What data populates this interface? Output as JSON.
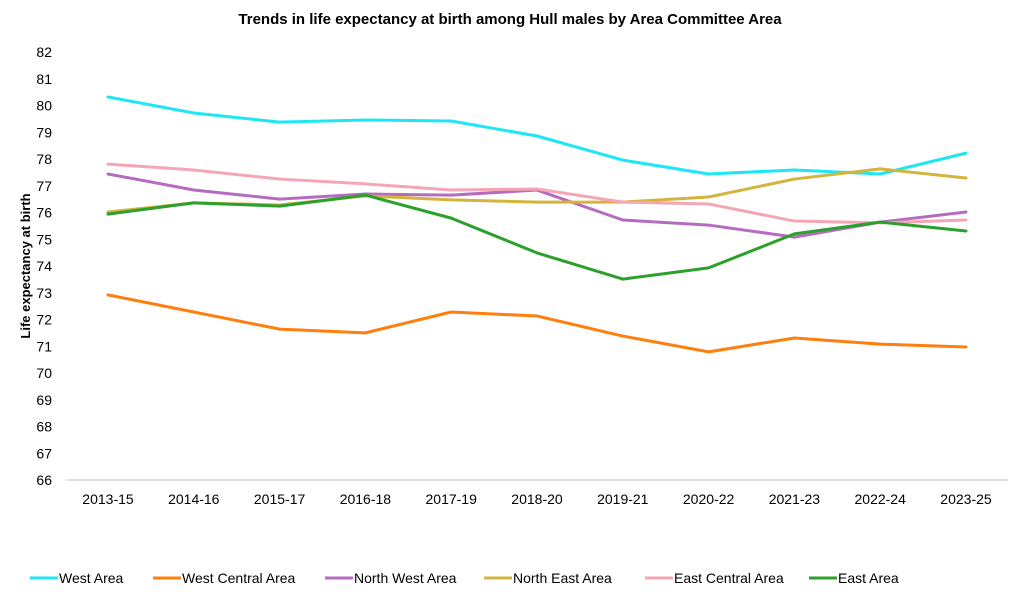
{
  "chart_data": {
    "type": "line",
    "title": "Trends in life expectancy at birth among Hull males by Area Committee Area",
    "xlabel": "",
    "ylabel": "Life expectancy at birth",
    "ylim": [
      66,
      82
    ],
    "yticks": [
      "66",
      "67",
      "68",
      "69",
      "70",
      "71",
      "72",
      "73",
      "74",
      "75",
      "76",
      "77",
      "78",
      "79",
      "80",
      "81",
      "82"
    ],
    "grid": false,
    "legend_position": "bottom",
    "categories": [
      "2013-15",
      "2014-16",
      "2015-17",
      "2016-18",
      "2017-19",
      "2018-20",
      "2019-21",
      "2020-22",
      "2021-23",
      "2022-24",
      "2023-25"
    ],
    "series": [
      {
        "name": "West Area",
        "color": "#1ee6f5",
        "values": [
          80.32,
          79.72,
          79.38,
          79.46,
          79.42,
          78.86,
          77.96,
          77.44,
          77.59,
          77.44,
          78.22
        ]
      },
      {
        "name": "West Central Area",
        "color": "#ff7f0e",
        "values": [
          72.92,
          72.28,
          71.64,
          71.5,
          72.28,
          72.13,
          71.38,
          70.79,
          71.31,
          71.08,
          70.97
        ]
      },
      {
        "name": "North West Area",
        "color": "#b56cc0",
        "values": [
          77.44,
          76.84,
          76.5,
          76.69,
          76.65,
          76.84,
          75.72,
          75.53,
          75.08,
          75.64,
          76.02
        ]
      },
      {
        "name": "North East Area",
        "color": "#d4b43c",
        "values": [
          76.02,
          76.36,
          76.28,
          76.62,
          76.47,
          76.39,
          76.39,
          76.58,
          77.25,
          77.63,
          77.29
        ]
      },
      {
        "name": "East Central Area",
        "color": "#f4a6b4",
        "values": [
          77.81,
          77.59,
          77.25,
          77.07,
          76.84,
          76.88,
          76.39,
          76.32,
          75.68,
          75.61,
          75.72
        ]
      },
      {
        "name": "East Area",
        "color": "#2ca02c",
        "values": [
          75.94,
          76.36,
          76.24,
          76.65,
          75.79,
          74.49,
          73.51,
          73.93,
          75.2,
          75.64,
          75.31
        ]
      }
    ]
  }
}
